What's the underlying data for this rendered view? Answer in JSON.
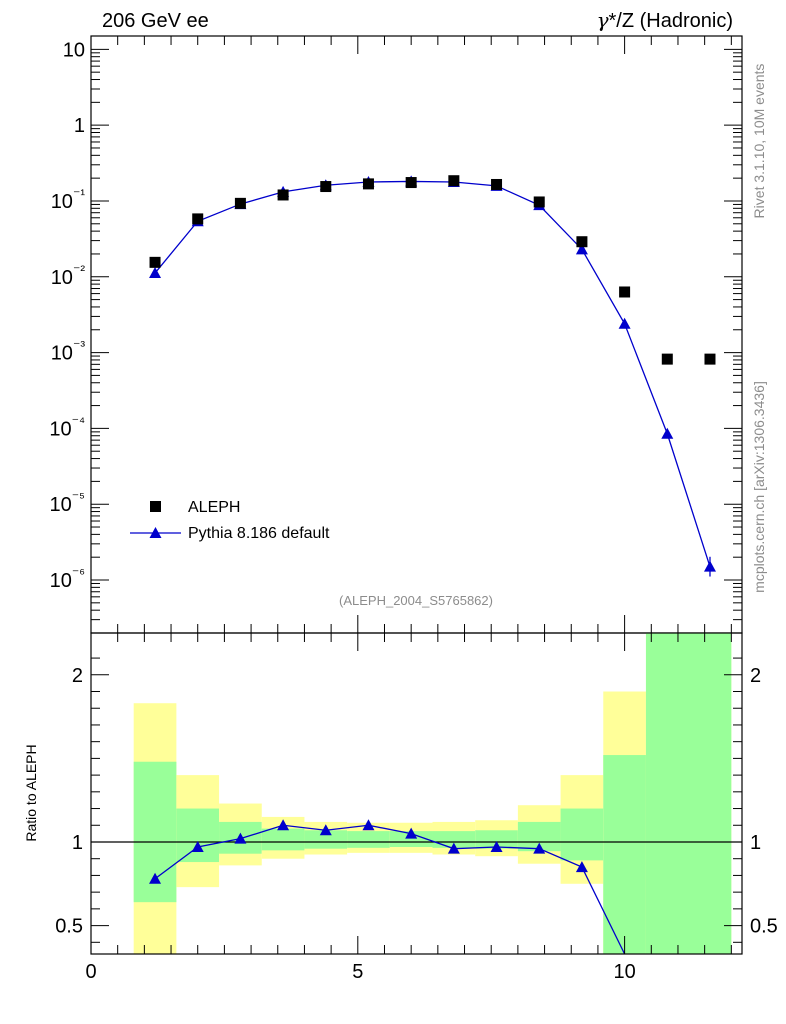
{
  "header": {
    "left_title": "206 GeV ee",
    "right_title_gamma": "γ",
    "right_title_rest": "*/Z (Hadronic)"
  },
  "side_labels": {
    "rivet": "Rivet 3.1.10,  10M events",
    "mcplots": "mcplots.cern.ch [arXiv:1306.3436]"
  },
  "analysis_id": "(ALEPH_2004_S5765862)",
  "legend": {
    "data_label": "ALEPH",
    "mc_label": "Pythia 8.186 default"
  },
  "colors": {
    "mc": "#0000cc",
    "data": "#000000",
    "band_inner": "#99ff99",
    "band_outer": "#ffff99",
    "tick_label_grey": "#8c8c8c"
  },
  "chart_data": [
    {
      "type": "scatter",
      "log_y": true,
      "xlim": [
        0,
        12.2
      ],
      "ylim": [
        2e-07,
        15
      ],
      "y_tick_labels": [
        "10",
        "1",
        "10⁻¹",
        "10⁻²",
        "10⁻³",
        "10⁻⁴",
        "10⁻⁵",
        "10⁻⁶"
      ],
      "series": [
        {
          "name": "ALEPH",
          "marker": "square",
          "x": [
            1.2,
            2.0,
            2.8,
            3.6,
            4.4,
            5.2,
            6.0,
            6.8,
            7.6,
            8.4,
            9.2,
            10.0,
            10.8,
            11.6
          ],
          "y": [
            0.0155,
            0.058,
            0.093,
            0.12,
            0.155,
            0.168,
            0.175,
            0.185,
            0.165,
            0.097,
            0.029,
            0.0063,
            0.00082,
            0.00082
          ]
        },
        {
          "name": "Pythia 8.186 default",
          "marker": "triangle",
          "x": [
            1.2,
            2.0,
            2.8,
            3.6,
            4.4,
            5.2,
            6.0,
            6.8,
            7.6,
            8.4,
            9.2,
            10.0,
            10.8,
            11.6
          ],
          "y": [
            0.0112,
            0.054,
            0.091,
            0.132,
            0.161,
            0.178,
            0.181,
            0.178,
            0.158,
            0.088,
            0.023,
            0.0024,
            8.5e-05,
            1.5e-06
          ]
        }
      ]
    },
    {
      "type": "line",
      "ylabel": "Ratio to ALEPH",
      "xlim": [
        0,
        12.2
      ],
      "ylim": [
        0.33,
        2.25
      ],
      "x_tick_labels": [
        "0",
        "5",
        "10"
      ],
      "y_tick_labels": [
        "0.5",
        "1",
        "2"
      ],
      "bands": {
        "edges": [
          0.8,
          1.6,
          2.4,
          3.2,
          4.0,
          4.8,
          5.6,
          6.4,
          7.2,
          8.0,
          8.8,
          9.6,
          10.4,
          12.0
        ],
        "inner_low": [
          0.64,
          0.88,
          0.93,
          0.95,
          0.96,
          0.965,
          0.97,
          0.965,
          0.96,
          0.945,
          0.89,
          0.33,
          0.33
        ],
        "inner_high": [
          1.48,
          1.2,
          1.12,
          1.08,
          1.07,
          1.065,
          1.065,
          1.065,
          1.07,
          1.12,
          1.2,
          1.52,
          2.25
        ],
        "outer_low": [
          0.33,
          0.73,
          0.86,
          0.9,
          0.925,
          0.935,
          0.935,
          0.925,
          0.915,
          0.87,
          0.75,
          0.33,
          0.33
        ],
        "outer_high": [
          1.83,
          1.4,
          1.23,
          1.15,
          1.12,
          1.115,
          1.115,
          1.12,
          1.13,
          1.22,
          1.4,
          1.9,
          2.25
        ]
      },
      "series": [
        {
          "name": "Pythia 8.186 default",
          "x": [
            1.2,
            2.0,
            2.8,
            3.6,
            4.4,
            5.2,
            6.0,
            6.8,
            7.6,
            8.4,
            9.2,
            10.0
          ],
          "y": [
            0.78,
            0.97,
            1.02,
            1.1,
            1.07,
            1.1,
            1.05,
            0.96,
            0.97,
            0.96,
            0.85,
            0.33
          ]
        }
      ]
    }
  ]
}
